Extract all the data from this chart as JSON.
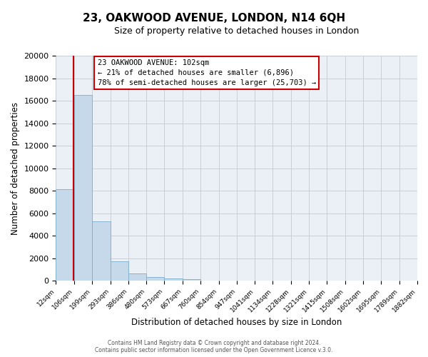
{
  "title": "23, OAKWOOD AVENUE, LONDON, N14 6QH",
  "subtitle": "Size of property relative to detached houses in London",
  "xlabel": "Distribution of detached houses by size in London",
  "ylabel": "Number of detached properties",
  "bar_color": "#c5d9ea",
  "bar_edge_color": "#7aaec8",
  "bin_edges": [
    12,
    106,
    199,
    293,
    386,
    480,
    573,
    667,
    760,
    854,
    947,
    1041,
    1134,
    1228,
    1321,
    1415,
    1508,
    1602,
    1695,
    1789,
    1882
  ],
  "bin_labels": [
    "12sqm",
    "106sqm",
    "199sqm",
    "293sqm",
    "386sqm",
    "480sqm",
    "573sqm",
    "667sqm",
    "760sqm",
    "854sqm",
    "947sqm",
    "1041sqm",
    "1134sqm",
    "1228sqm",
    "1321sqm",
    "1415sqm",
    "1508sqm",
    "1602sqm",
    "1695sqm",
    "1789sqm",
    "1882sqm"
  ],
  "bar_heights": [
    8100,
    16500,
    5300,
    1750,
    650,
    300,
    200,
    130,
    0,
    0,
    0,
    0,
    0,
    0,
    0,
    0,
    0,
    0,
    0,
    0
  ],
  "ylim": [
    0,
    20000
  ],
  "yticks": [
    0,
    2000,
    4000,
    6000,
    8000,
    10000,
    12000,
    14000,
    16000,
    18000,
    20000
  ],
  "vline_x": 102,
  "annotation_title": "23 OAKWOOD AVENUE: 102sqm",
  "annotation_line1": "← 21% of detached houses are smaller (6,896)",
  "annotation_line2": "78% of semi-detached houses are larger (25,703) →",
  "footer_line1": "Contains HM Land Registry data © Crown copyright and database right 2024.",
  "footer_line2": "Contains public sector information licensed under the Open Government Licence v.3.0.",
  "plot_bg_color": "#eaf0f6",
  "annotation_box_color": "#ffffff",
  "annotation_box_edge": "#cc0000",
  "vline_color": "#cc0000",
  "grid_color": "#c8d0d8"
}
